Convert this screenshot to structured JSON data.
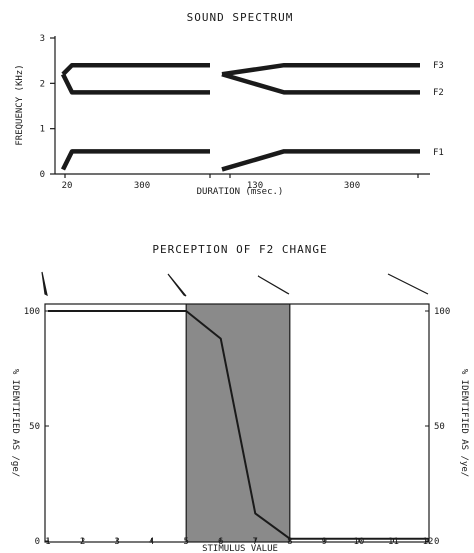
{
  "colors": {
    "ink": "#1a1a1a",
    "shade": "#8a8a8a",
    "paper": "#ffffff"
  },
  "chart_data": [
    {
      "type": "line",
      "title": "SOUND SPECTRUM",
      "xlabel": "DURATION (msec.)",
      "ylabel": "FREQUENCY (KHz)",
      "ylim": [
        0,
        3
      ],
      "yticks": [
        "0",
        "1",
        "2",
        "3"
      ],
      "panel_labels": [
        "20",
        "300",
        "130",
        "300"
      ],
      "formant_labels": [
        "F3",
        "F2",
        "F1"
      ],
      "stimulus_1": {
        "transition_ms": 20,
        "steady_ms": 300,
        "formants": [
          {
            "name": "F3",
            "start": 2.2,
            "steady": 2.4
          },
          {
            "name": "F2",
            "start": 2.2,
            "steady": 1.8
          },
          {
            "name": "F1",
            "start": 0.1,
            "steady": 0.5
          }
        ]
      },
      "stimulus_2": {
        "transition_ms": 130,
        "steady_ms": 300,
        "formants": [
          {
            "name": "F3",
            "start": 2.2,
            "steady": 2.4
          },
          {
            "name": "F2",
            "start": 2.2,
            "steady": 1.8
          },
          {
            "name": "F1",
            "start": 0.1,
            "steady": 0.5
          }
        ]
      }
    },
    {
      "type": "line",
      "title": "PERCEPTION OF F2 CHANGE",
      "xlabel": "STIMULUS VALUE",
      "ylabel_left": "% IDENTIFIED AS /ge/",
      "ylabel_right": "% IDENTIFIED AS /ye/",
      "xlim": [
        1,
        12
      ],
      "ylim": [
        0,
        100
      ],
      "x_ticks": [
        1,
        2,
        3,
        4,
        5,
        6,
        7,
        8,
        9,
        10,
        11,
        12
      ],
      "y_ticks_left": [
        "0",
        "50",
        "100"
      ],
      "y_ticks_right": [
        "100",
        "50",
        "0"
      ],
      "shaded_region": [
        5,
        8
      ],
      "series": [
        {
          "x": [
            1,
            5,
            6,
            7,
            8,
            12
          ],
          "values": [
            100,
            100,
            88,
            12,
            1,
            1
          ]
        }
      ],
      "transition_icons_at": [
        1,
        5,
        8,
        12
      ]
    }
  ]
}
